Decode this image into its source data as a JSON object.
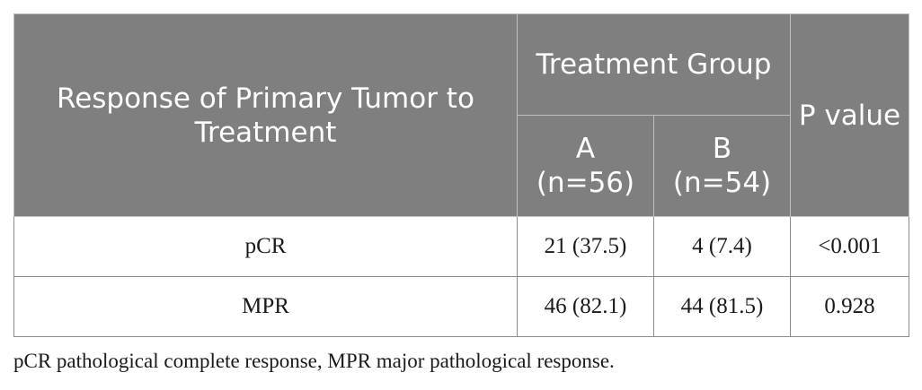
{
  "table": {
    "header": {
      "response_col": "Response of Primary Tumor to Treatment",
      "group_col": "Treatment Group",
      "group_a": "A (n=56)",
      "group_b": "B (n=54)",
      "p_value_col": "P value"
    },
    "rows": [
      {
        "label": "pCR",
        "a": "21 (37.5)",
        "b": "4 (7.4)",
        "p": "<0.001"
      },
      {
        "label": "MPR",
        "a": "46 (82.1)",
        "b": "44 (81.5)",
        "p": "0.928"
      }
    ]
  },
  "footnote": "pCR pathological complete response, MPR major pathological response.",
  "colors": {
    "header_background": "#7f7f7f",
    "header_text": "#ffffff",
    "body_text": "#1a1a1a"
  }
}
